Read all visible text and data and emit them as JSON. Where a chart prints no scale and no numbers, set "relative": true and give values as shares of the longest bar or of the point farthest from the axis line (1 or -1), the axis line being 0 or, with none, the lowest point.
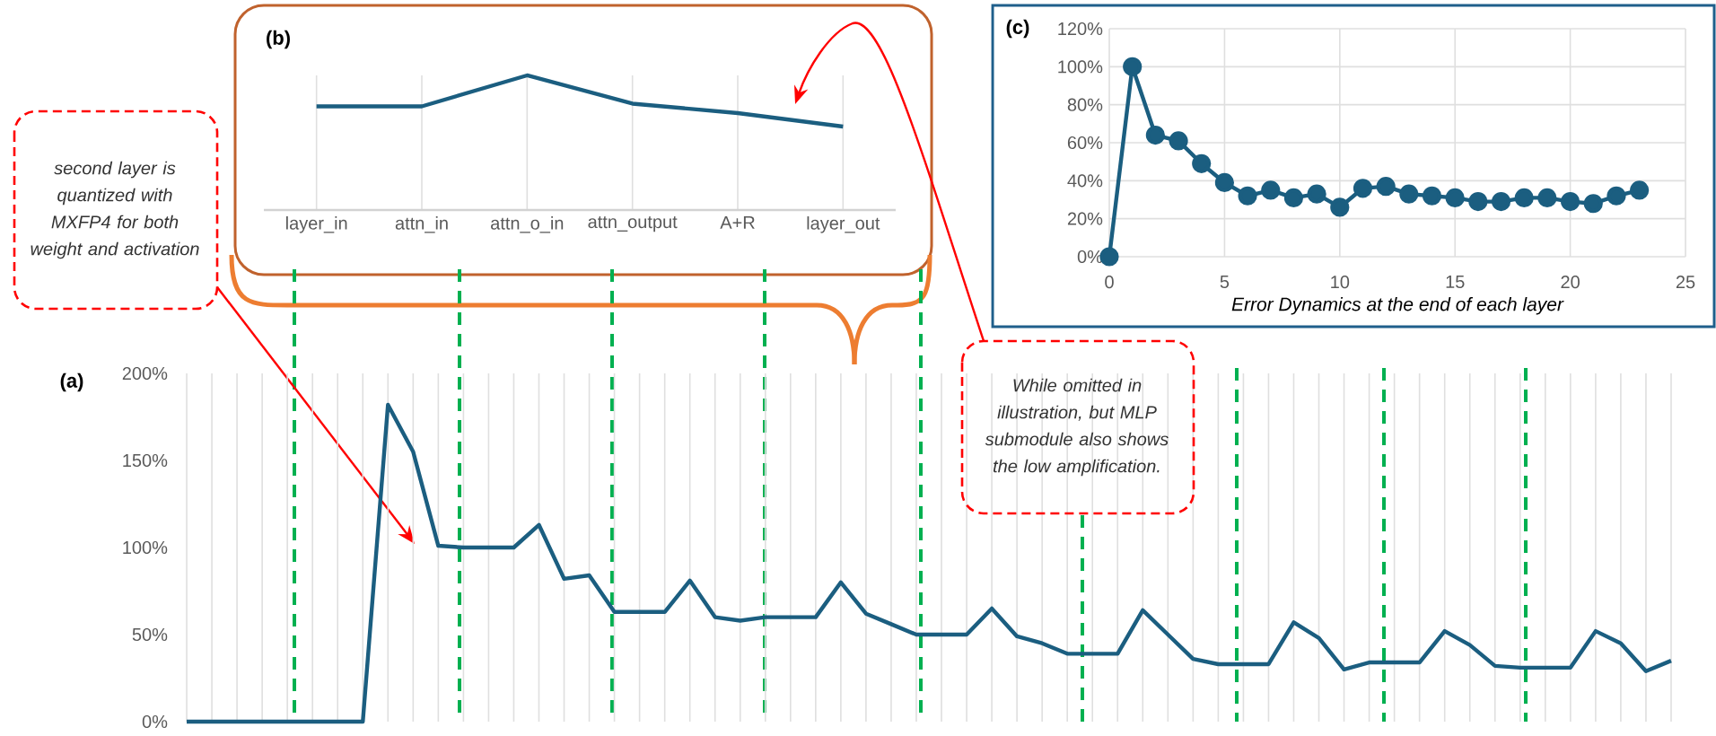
{
  "chart_data": [
    {
      "type": "line",
      "title": "(a)",
      "categories": [
        null,
        null,
        null,
        null,
        null,
        null,
        null,
        null,
        null,
        null,
        null,
        null,
        null,
        null,
        null,
        null,
        null,
        null,
        null,
        null,
        null,
        null,
        null,
        null,
        null,
        null,
        null,
        null,
        null,
        null,
        null,
        null,
        null,
        null,
        null,
        null,
        null,
        null,
        null,
        null,
        null,
        null,
        null,
        null,
        null,
        null,
        null,
        null,
        null,
        null,
        null,
        null,
        null,
        null,
        null,
        null,
        null,
        null,
        null,
        null
      ],
      "values": [
        0,
        0,
        0,
        0,
        0,
        0,
        0,
        0,
        182,
        155,
        101,
        100,
        100,
        100,
        113,
        82,
        84,
        63,
        63,
        63,
        81,
        60,
        58,
        60,
        60,
        60,
        80,
        62,
        56,
        50,
        50,
        50,
        65,
        49,
        45,
        39,
        39,
        39,
        64,
        50,
        36,
        33,
        33,
        33,
        57,
        48,
        30,
        34,
        34,
        34,
        52,
        44,
        32,
        31,
        31,
        31,
        52,
        45,
        29,
        35
      ],
      "color": "#1b5e80",
      "ylim": [
        0,
        200
      ],
      "yticks": [
        {
          "value": 0,
          "label": "0%"
        },
        {
          "value": 50,
          "label": "50%"
        },
        {
          "value": 100,
          "label": "100%"
        },
        {
          "value": 150,
          "label": "150%"
        },
        {
          "value": 200,
          "label": "200%"
        }
      ],
      "grid": "x",
      "annotations": [
        "second layer is quantized with MXFP4 for both weight and activation",
        "While omitted in illustration, but MLP submodule also shows the low amplification."
      ]
    },
    {
      "type": "line",
      "title": "(b)",
      "categories": [
        "layer_in",
        "attn_in",
        "attn_o_in",
        "attn_output",
        "A+R",
        "layer_out"
      ],
      "values": [
        0.77,
        0.77,
        1,
        0.79,
        0.72,
        0.62
      ],
      "relative": true,
      "grid": "x",
      "color": "#1b5e80"
    },
    {
      "type": "line",
      "title": "(c)",
      "xlabel": "Error Dynamics at the end of each layer",
      "x": [
        0,
        1,
        2,
        3,
        4,
        5,
        6,
        7,
        8,
        9,
        10,
        11,
        12,
        13,
        14,
        15,
        16,
        17,
        18,
        19,
        20,
        21,
        22,
        23
      ],
      "values": [
        0,
        100,
        64,
        61,
        49,
        39,
        32,
        35,
        31,
        33,
        26,
        36,
        37,
        33,
        32,
        31,
        29,
        29,
        31,
        31,
        29,
        28,
        32,
        35
      ],
      "color": "#1b5e80",
      "xlim": [
        0,
        25
      ],
      "xticks": [
        0,
        5,
        10,
        15,
        20,
        25
      ],
      "ylim": [
        0,
        120
      ],
      "yticks": [
        {
          "value": 0,
          "label": "0%"
        },
        {
          "value": 20,
          "label": "20%"
        },
        {
          "value": 40,
          "label": "40%"
        },
        {
          "value": 60,
          "label": "60%"
        },
        {
          "value": 80,
          "label": "80%"
        },
        {
          "value": 100,
          "label": "100%"
        },
        {
          "value": 120,
          "label": "120%"
        }
      ],
      "grid": true,
      "marker": "circle"
    }
  ]
}
